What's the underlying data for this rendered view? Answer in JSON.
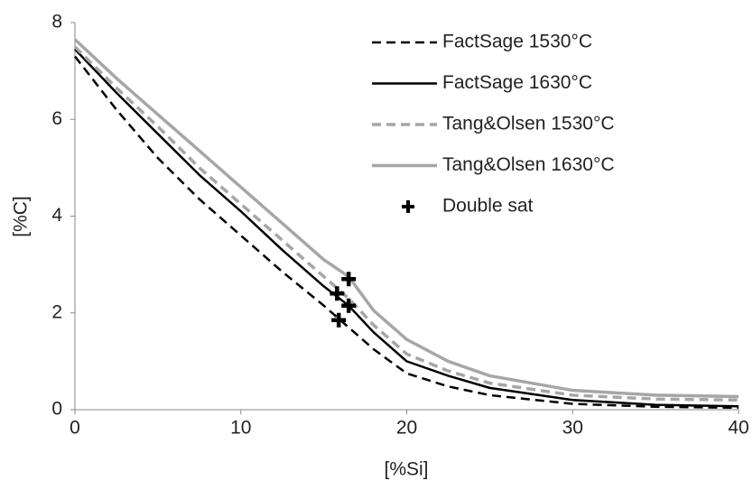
{
  "chart_data": {
    "type": "line",
    "xlabel": "[%Si]",
    "ylabel": "[%C]",
    "xlim": [
      0,
      40
    ],
    "ylim": [
      0,
      8
    ],
    "xticks": [
      0,
      10,
      20,
      30,
      40
    ],
    "yticks": [
      0,
      2,
      4,
      6,
      8
    ],
    "grid": false,
    "legend": "upper right",
    "series": [
      {
        "name": "FactSage 1530°C",
        "color": "#000000",
        "dashed": true,
        "x": [
          0,
          2.5,
          5,
          7.5,
          10,
          12.5,
          15,
          16.5,
          18,
          20,
          22.5,
          25,
          30,
          35,
          40
        ],
        "values": [
          7.3,
          6.2,
          5.2,
          4.35,
          3.6,
          2.85,
          2.15,
          1.7,
          1.25,
          0.75,
          0.48,
          0.3,
          0.12,
          0.06,
          0.04
        ]
      },
      {
        "name": "FactSage 1630°C",
        "color": "#000000",
        "dashed": false,
        "x": [
          0,
          2.5,
          5,
          7.5,
          10,
          12.5,
          15,
          16.5,
          18,
          20,
          22.5,
          25,
          30,
          35,
          40
        ],
        "values": [
          7.45,
          6.55,
          5.7,
          4.85,
          4.1,
          3.3,
          2.55,
          2.15,
          1.6,
          1.0,
          0.7,
          0.45,
          0.2,
          0.1,
          0.07
        ]
      },
      {
        "name": "Tang&Olsen 1530°C",
        "color": "#a6a6a6",
        "dashed": true,
        "x": [
          0,
          2.5,
          5,
          7.5,
          10,
          12.5,
          15,
          16.5,
          18,
          20,
          22.5,
          25,
          30,
          35,
          40
        ],
        "values": [
          7.5,
          6.65,
          5.85,
          5.0,
          4.25,
          3.5,
          2.75,
          2.3,
          1.75,
          1.15,
          0.8,
          0.55,
          0.3,
          0.22,
          0.2
        ]
      },
      {
        "name": "Tang&Olsen 1630°C",
        "color": "#a6a6a6",
        "dashed": false,
        "x": [
          0,
          2.5,
          5,
          7.5,
          10,
          12.5,
          15,
          16.5,
          18,
          20,
          22.5,
          25,
          30,
          35,
          40
        ],
        "values": [
          7.65,
          6.85,
          6.1,
          5.35,
          4.6,
          3.85,
          3.1,
          2.75,
          2.05,
          1.45,
          1.0,
          0.7,
          0.4,
          0.3,
          0.27
        ]
      },
      {
        "name": "Double sat",
        "color": "#000000",
        "marker": "plus",
        "x": [
          15.8,
          16.5,
          16.5,
          15.9
        ],
        "values": [
          2.4,
          2.7,
          2.15,
          1.85
        ]
      }
    ]
  }
}
